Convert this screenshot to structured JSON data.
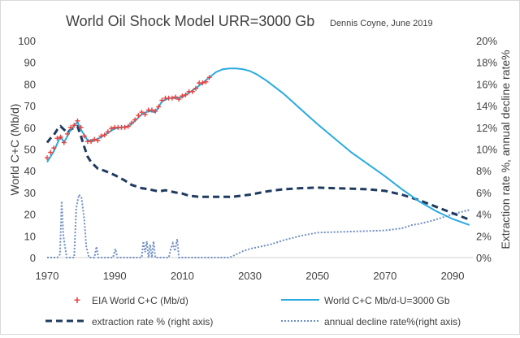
{
  "chart_data": {
    "type": "line",
    "title": "World Oil Shock Model URR=3000 Gb",
    "subtitle": "Dennis Coyne, June 2019",
    "ylabel_left": "World C+C (Mb/d)",
    "ylabel_right": "Extraction rate %, annual decline rate%",
    "xlim": [
      1970,
      2096
    ],
    "ylim_left": [
      0,
      100
    ],
    "ylim_right": [
      0,
      20
    ],
    "x_ticks": [
      "1970",
      "1990",
      "2010",
      "2030",
      "2050",
      "2070",
      "2090"
    ],
    "y_ticks_left": [
      "0",
      "10",
      "20",
      "30",
      "40",
      "50",
      "60",
      "70",
      "80",
      "90",
      "100"
    ],
    "y_ticks_right": [
      "0%",
      "2%",
      "4%",
      "6%",
      "8%",
      "10%",
      "12%",
      "14%",
      "16%",
      "18%",
      "20%"
    ],
    "legend_position": "bottom",
    "grid": false,
    "colors": {
      "eia": "#e8413c",
      "model": "#29aae1",
      "extraction": "#1f3a5f",
      "decline": "#6f8fc4"
    },
    "series": [
      {
        "name": "EIA World C+C (Mb/d)",
        "axis": "left",
        "style": "markers",
        "x": [
          1970,
          1971,
          1972,
          1973,
          1974,
          1975,
          1976,
          1977,
          1978,
          1979,
          1980,
          1981,
          1982,
          1983,
          1984,
          1985,
          1986,
          1987,
          1988,
          1989,
          1990,
          1991,
          1992,
          1993,
          1994,
          1995,
          1996,
          1997,
          1998,
          1999,
          2000,
          2001,
          2002,
          2003,
          2004,
          2005,
          2006,
          2007,
          2008,
          2009,
          2010,
          2011,
          2012,
          2013,
          2014,
          2015,
          2016,
          2017,
          2018
        ],
        "y": [
          46,
          48.5,
          50.5,
          55,
          55.5,
          53,
          57,
          60,
          61,
          63,
          60,
          56,
          53.5,
          53.5,
          54.5,
          54,
          56,
          56.5,
          58,
          59.5,
          60,
          60,
          60,
          60,
          60.5,
          62,
          63.5,
          65.5,
          67,
          66,
          68,
          68,
          67.5,
          69.5,
          72.5,
          73.5,
          73.5,
          73.5,
          74,
          73,
          74.5,
          75,
          76.5,
          76.5,
          78,
          80.5,
          80.5,
          81,
          83
        ]
      },
      {
        "name": "World C+C Mb/d-U=3000 Gb",
        "axis": "left",
        "style": "solid",
        "x": [
          1970,
          1972,
          1974,
          1975,
          1977,
          1979,
          1980,
          1982,
          1984,
          1986,
          1988,
          1990,
          1992,
          1994,
          1996,
          1998,
          2000,
          2002,
          2004,
          2006,
          2008,
          2010,
          2012,
          2014,
          2016,
          2018,
          2020,
          2022,
          2024,
          2026,
          2028,
          2030,
          2032,
          2035,
          2040,
          2045,
          2050,
          2055,
          2060,
          2065,
          2070,
          2075,
          2080,
          2085,
          2090,
          2095
        ],
        "y": [
          44,
          49,
          56,
          53,
          59,
          62.5,
          59,
          54,
          54,
          55.5,
          57.5,
          59.5,
          60,
          60.5,
          63,
          66,
          67.5,
          67,
          72,
          73.5,
          73.5,
          74,
          76,
          78,
          80.5,
          83,
          85.5,
          86.8,
          87.2,
          87.2,
          86.8,
          86,
          84.5,
          81.5,
          75.5,
          68.5,
          61.5,
          55,
          48.5,
          43,
          37.5,
          31.5,
          26,
          21.5,
          17.8,
          15
        ]
      },
      {
        "name": "extraction rate % (right axis)",
        "axis": "right",
        "style": "dashed",
        "x": [
          1970,
          1971,
          1972,
          1973,
          1974,
          1975,
          1976,
          1977,
          1978,
          1979,
          1980,
          1981,
          1982,
          1983,
          1985,
          1987,
          1990,
          1993,
          1995,
          1998,
          2000,
          2003,
          2005,
          2008,
          2010,
          2012,
          2015,
          2020,
          2025,
          2030,
          2035,
          2040,
          2045,
          2050,
          2055,
          2060,
          2065,
          2070,
          2075,
          2080,
          2085,
          2090,
          2095
        ],
        "y": [
          10.6,
          11,
          11.3,
          11.8,
          12.1,
          11.8,
          11.5,
          11.8,
          12,
          12.1,
          11.2,
          10.2,
          9.3,
          8.8,
          8.2,
          8,
          7.6,
          7.1,
          6.7,
          6.4,
          6.3,
          6.1,
          6.2,
          6,
          5.9,
          5.7,
          5.6,
          5.6,
          5.6,
          5.8,
          6.1,
          6.3,
          6.4,
          6.45,
          6.4,
          6.35,
          6.3,
          6.15,
          5.8,
          5.3,
          4.7,
          4.1,
          3.5
        ]
      },
      {
        "name": "annual decline rate%(right axis)",
        "axis": "right",
        "style": "dotted",
        "x": [
          1970,
          1973,
          1973.8,
          1974.3,
          1974.8,
          1975.3,
          1975.8,
          1977,
          1978,
          1978.6,
          1979.4,
          1980.2,
          1981,
          1981.6,
          1982.4,
          1983.2,
          1984,
          1984.6,
          1985.2,
          1985.8,
          1986.4,
          1988,
          1989.5,
          1990.2,
          1990.8,
          1992,
          1994,
          1996,
          1998,
          1998.5,
          1999,
          1999.5,
          2000,
          2000.5,
          2001,
          2001.5,
          2002,
          2003,
          2004,
          2005,
          2006,
          2006.6,
          2007.2,
          2007.8,
          2008.5,
          2009,
          2010,
          2012,
          2014,
          2016,
          2018,
          2020,
          2024,
          2026,
          2028,
          2030,
          2033,
          2036,
          2040,
          2045,
          2050,
          2060,
          2070,
          2075,
          2078,
          2080,
          2084,
          2090,
          2095
        ],
        "y": [
          0,
          0,
          0.3,
          5.2,
          2,
          1,
          0,
          0,
          0,
          4.5,
          5.8,
          5.5,
          3.5,
          1,
          0,
          0,
          0,
          1,
          0,
          0,
          0,
          0,
          0,
          0.8,
          0,
          0,
          0,
          0,
          0,
          1.5,
          0.5,
          1.5,
          0,
          1.2,
          0,
          1.5,
          0,
          0,
          0,
          0,
          0,
          0.8,
          1.3,
          0.6,
          1.7,
          0,
          0,
          0,
          0,
          0,
          0,
          0,
          0,
          0.3,
          0.6,
          0.8,
          1,
          1.2,
          1.6,
          2,
          2.3,
          2.4,
          2.5,
          2.7,
          3,
          3.1,
          3.4,
          4,
          4.4
        ]
      }
    ]
  }
}
